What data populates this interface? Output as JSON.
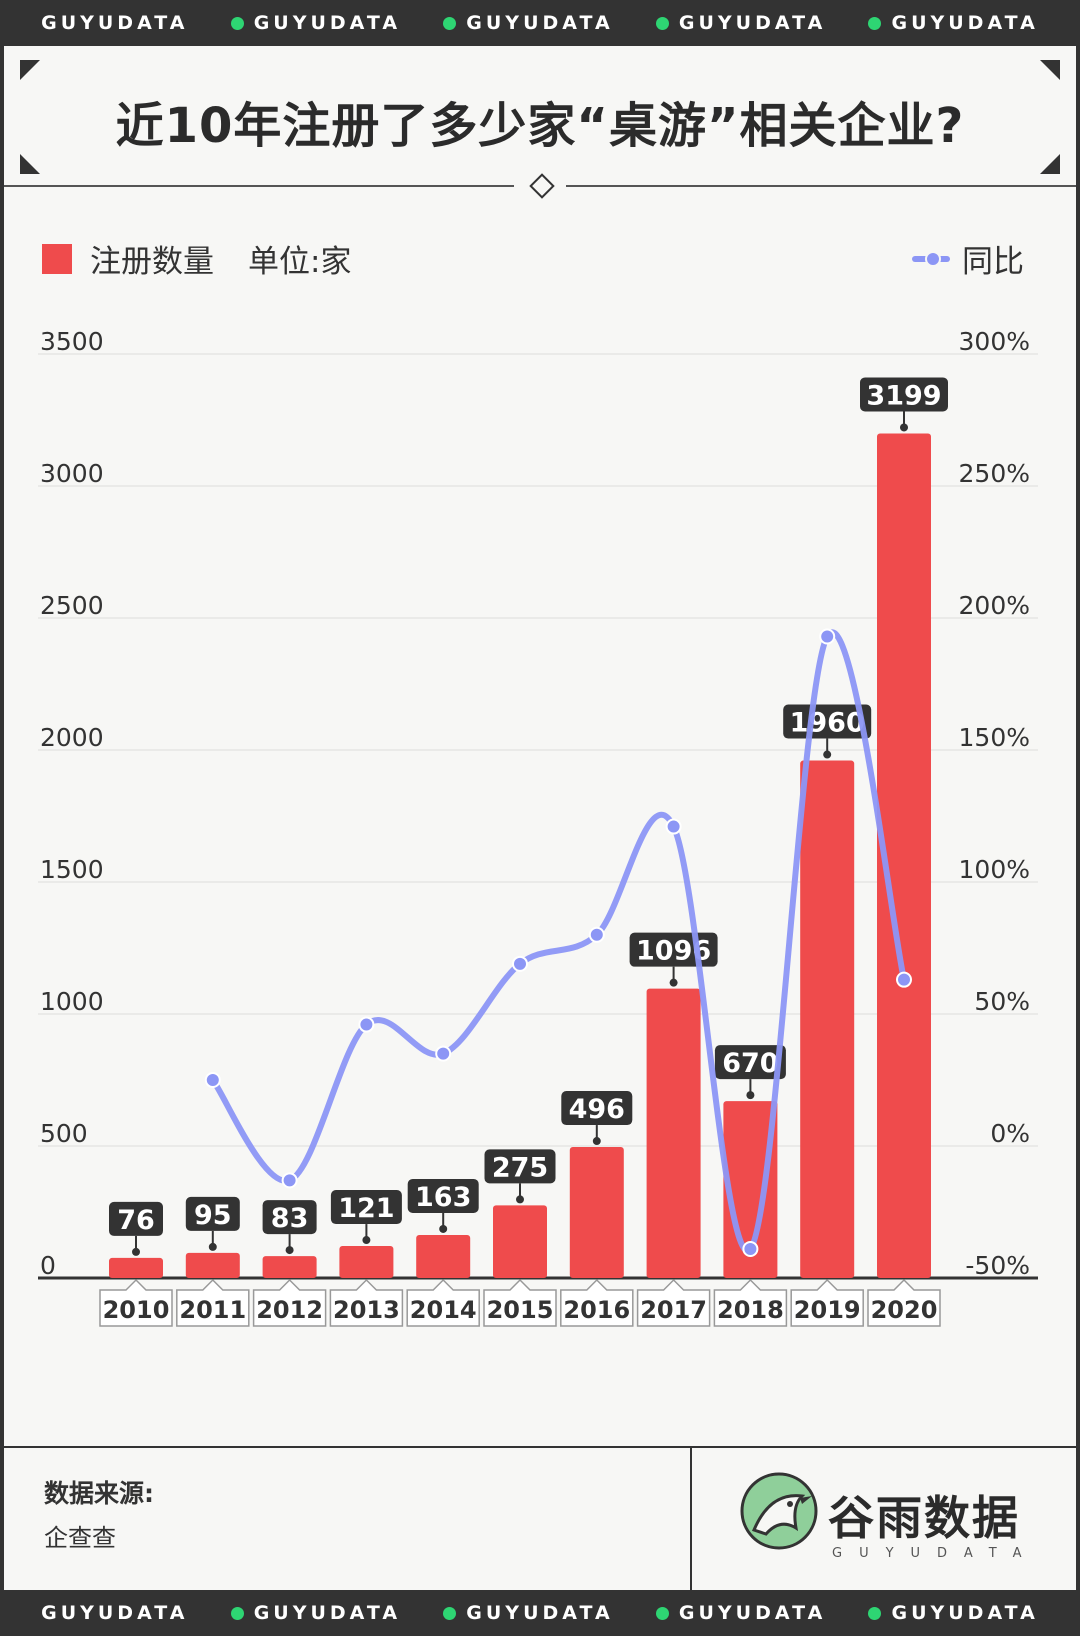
{
  "banner": {
    "text": "GUYUDATA",
    "dot_color": "#2ed573"
  },
  "title": "近10年注册了多少家“桌游”相关企业?",
  "legend": {
    "bar_label": "注册数量",
    "unit_label": "单位:家",
    "line_label": "同比",
    "bar_color": "#ef4b4c",
    "line_color": "#8c96f5"
  },
  "chart_data": {
    "type": "bar+line",
    "categories": [
      "2010",
      "2011",
      "2012",
      "2013",
      "2014",
      "2015",
      "2016",
      "2017",
      "2018",
      "2019",
      "2020"
    ],
    "series": [
      {
        "name": "注册数量",
        "type": "bar",
        "axis": "left",
        "values": [
          76,
          95,
          83,
          121,
          163,
          275,
          496,
          1096,
          670,
          1960,
          3199
        ]
      },
      {
        "name": "同比",
        "type": "line",
        "axis": "right",
        "unit": "%",
        "values": [
          null,
          25,
          -13,
          46,
          35,
          69,
          80,
          121,
          -39,
          193,
          63
        ]
      }
    ],
    "left_axis": {
      "min": 0,
      "max": 3500,
      "ticks": [
        0,
        500,
        1000,
        1500,
        2000,
        2500,
        3000,
        3500
      ]
    },
    "right_axis": {
      "min": -50,
      "max": 300,
      "ticks": [
        -50,
        0,
        50,
        100,
        150,
        200,
        250,
        300
      ],
      "tick_labels": [
        "-50%",
        "0%",
        "50%",
        "100%",
        "150%",
        "200%",
        "250%",
        "300%"
      ]
    },
    "legend_position": "top"
  },
  "footer": {
    "source_label": "数据来源:",
    "source_value": "企查查",
    "logo_name": "谷雨数据",
    "logo_sub": "GUYUDATA"
  }
}
